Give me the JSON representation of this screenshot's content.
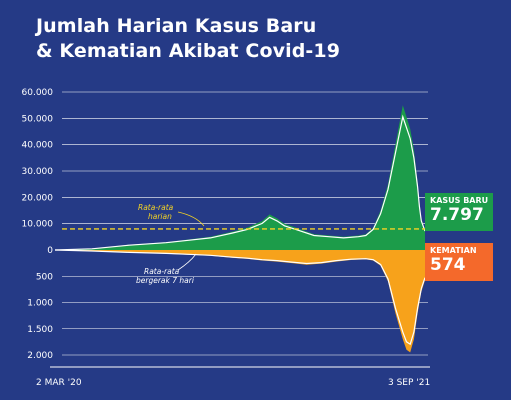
{
  "title": {
    "line1": "Jumlah Harian Kasus Baru",
    "line2": "& Kematian Akibat Covid-19"
  },
  "annotations": {
    "daily_avg_line1": "Rata-rata",
    "daily_avg_line2": "harian",
    "moving_avg_line1": "Rata-rata",
    "moving_avg_line2": "bergerak 7 hari"
  },
  "badges": {
    "cases_label": "KASUS BARU",
    "cases_value": "7.797",
    "deaths_label": "KEMATIAN",
    "deaths_value": "574"
  },
  "colors": {
    "background": "#253a86",
    "cases_fill": "#1c9c4a",
    "deaths_fill": "#f7a21b",
    "average_line": "#f5d423",
    "moving_avg_line": "#ffffff",
    "cases_badge": "#1c9c4a",
    "deaths_badge": "#f4692b"
  },
  "chart_data": {
    "type": "area",
    "x_start_label": "2 MAR '20",
    "x_end_label": "3 SEP '21",
    "cases_axis": {
      "ticks": [
        "60.000",
        "50.000",
        "40.000",
        "30.000",
        "20.000",
        "10.000",
        "0"
      ],
      "values": [
        60000,
        50000,
        40000,
        30000,
        20000,
        10000,
        0
      ],
      "ylim": [
        0,
        60000
      ]
    },
    "deaths_axis": {
      "ticks": [
        "500",
        "1.000",
        "1.500",
        "2.000"
      ],
      "values": [
        500,
        1000,
        1500,
        2000
      ],
      "ylim": [
        0,
        2000
      ]
    },
    "daily_average_cases": 8000,
    "series": [
      {
        "name": "Kasus Baru",
        "x_fraction": [
          0,
          0.1,
          0.2,
          0.3,
          0.36,
          0.42,
          0.48,
          0.52,
          0.56,
          0.58,
          0.6,
          0.62,
          0.64,
          0.66,
          0.7,
          0.74,
          0.78,
          0.82,
          0.84,
          0.86,
          0.88,
          0.9,
          0.92,
          0.94,
          0.96,
          0.97,
          0.98,
          0.985,
          0.99,
          1.0
        ],
        "values": [
          0,
          500,
          2000,
          3000,
          4000,
          5000,
          7000,
          8500,
          11000,
          13500,
          12000,
          10000,
          9000,
          8000,
          6000,
          5500,
          5000,
          5500,
          6000,
          8500,
          15000,
          25000,
          40000,
          55000,
          46000,
          38000,
          26000,
          18000,
          12000,
          7797
        ]
      },
      {
        "name": "Kematian",
        "x_fraction": [
          0,
          0.1,
          0.2,
          0.3,
          0.36,
          0.42,
          0.48,
          0.52,
          0.56,
          0.6,
          0.64,
          0.68,
          0.72,
          0.76,
          0.8,
          0.84,
          0.86,
          0.88,
          0.9,
          0.92,
          0.94,
          0.95,
          0.96,
          0.97,
          0.98,
          0.99,
          1.0
        ],
        "values": [
          0,
          20,
          50,
          70,
          90,
          110,
          150,
          170,
          200,
          220,
          250,
          280,
          260,
          220,
          190,
          180,
          200,
          300,
          600,
          1200,
          1700,
          1900,
          1950,
          1700,
          1200,
          800,
          574
        ]
      }
    ]
  }
}
